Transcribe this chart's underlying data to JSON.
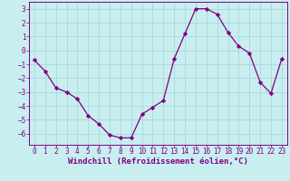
{
  "x": [
    0,
    1,
    2,
    3,
    4,
    5,
    6,
    7,
    8,
    9,
    10,
    11,
    12,
    13,
    14,
    15,
    16,
    17,
    18,
    19,
    20,
    21,
    22,
    23
  ],
  "y": [
    -0.7,
    -1.5,
    -2.7,
    -3.0,
    -3.5,
    -4.7,
    -5.3,
    -6.1,
    -6.3,
    -6.3,
    -4.6,
    -4.1,
    -3.6,
    -0.6,
    1.2,
    3.0,
    3.0,
    2.6,
    1.3,
    0.3,
    -0.2,
    -2.3,
    -3.1,
    -0.6
  ],
  "line_color": "#800080",
  "marker": "D",
  "marker_size": 2.2,
  "bg_color": "#c8eef0",
  "grid_color": "#a8d8da",
  "tick_color": "#800080",
  "xlabel": "Windchill (Refroidissement éolien,°C)",
  "xlim": [
    -0.5,
    23.5
  ],
  "ylim": [
    -6.8,
    3.5
  ],
  "yticks": [
    -6,
    -5,
    -4,
    -3,
    -2,
    -1,
    0,
    1,
    2,
    3
  ],
  "xticks": [
    0,
    1,
    2,
    3,
    4,
    5,
    6,
    7,
    8,
    9,
    10,
    11,
    12,
    13,
    14,
    15,
    16,
    17,
    18,
    19,
    20,
    21,
    22,
    23
  ],
  "tick_fontsize": 5.5,
  "xlabel_fontsize": 6.5
}
